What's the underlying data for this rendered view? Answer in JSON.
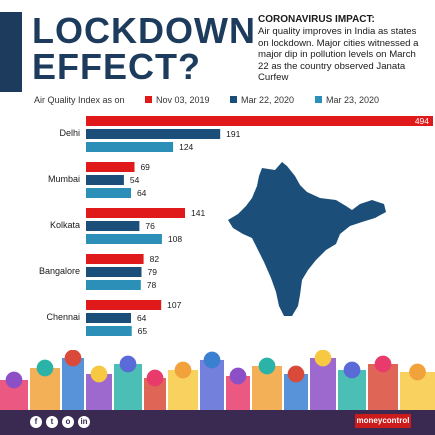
{
  "title": {
    "line1": "LOCKDOWN",
    "line2": "EFFECT?"
  },
  "subtitle": {
    "heading": "CORONAVIRUS IMPACT:",
    "body": "Air quality improves in India as states on lockdown. Major cities witnessed a major dip in pollution levels on March 22 as the country observed Janata Curfew"
  },
  "legend": {
    "label": "Air Quality Index as on",
    "items": [
      {
        "label": "Nov 03, 2019",
        "color": "#e0191b"
      },
      {
        "label": "Mar 22, 2020",
        "color": "#1b4f7a"
      },
      {
        "label": "Mar 23, 2020",
        "color": "#2b8fb8"
      }
    ]
  },
  "chart_data": {
    "type": "bar",
    "orientation": "horizontal",
    "categories": [
      "Delhi",
      "Mumbai",
      "Kolkata",
      "Bangalore",
      "Chennai"
    ],
    "series": [
      {
        "name": "Nov 03, 2019",
        "values": [
          494,
          69,
          141,
          82,
          107
        ],
        "color": "#e0191b"
      },
      {
        "name": "Mar 22, 2020",
        "values": [
          191,
          54,
          76,
          79,
          64
        ],
        "color": "#1b4f7a"
      },
      {
        "name": "Mar 23, 2020",
        "values": [
          124,
          64,
          108,
          78,
          65
        ],
        "color": "#2b8fb8"
      }
    ],
    "title": "LOCKDOWN EFFECT?",
    "ylabel": "Air Quality Index as on",
    "xlim": [
      0,
      494
    ],
    "legend_position": "top",
    "grid": false
  },
  "footer": {
    "social_icons": [
      "facebook-icon",
      "twitter-icon",
      "instagram-icon",
      "linkedin-icon"
    ],
    "brand": "moneycontrol"
  },
  "decorations": {
    "map": "india-map-silhouette",
    "skyline": "indian-monuments-skyline"
  }
}
